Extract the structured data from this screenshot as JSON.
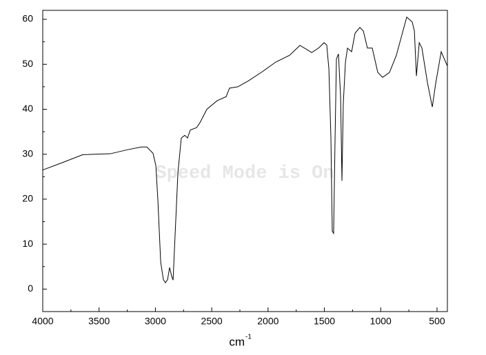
{
  "chart_data": {
    "type": "line",
    "xlabel": "cm",
    "xlabel_superscript": "-1",
    "watermark": "Speed Mode is On",
    "color": "#000000",
    "x": [
      4000,
      3829,
      3645,
      3400,
      3247,
      3125,
      3076,
      3021,
      2996,
      2978,
      2953,
      2929,
      2911,
      2892,
      2874,
      2856,
      2843,
      2825,
      2800,
      2770,
      2739,
      2715,
      2690,
      2635,
      2605,
      2543,
      2452,
      2372,
      2342,
      2268,
      2176,
      2054,
      1931,
      1809,
      1717,
      1650,
      1613,
      1552,
      1503,
      1479,
      1460,
      1442,
      1430,
      1418,
      1405,
      1393,
      1375,
      1356,
      1344,
      1332,
      1313,
      1295,
      1258,
      1228,
      1185,
      1154,
      1118,
      1075,
      1026,
      983,
      922,
      861,
      769,
      720,
      701,
      683,
      658,
      634,
      585,
      542,
      511,
      463,
      410
    ],
    "values": [
      26.5,
      28.1,
      29.9,
      30.1,
      31.0,
      31.6,
      31.6,
      30.2,
      27.5,
      19.8,
      6.0,
      2.1,
      1.4,
      2.1,
      4.8,
      2.9,
      2.0,
      12.1,
      25.9,
      33.6,
      34.2,
      33.6,
      35.4,
      35.9,
      37.0,
      40.0,
      41.9,
      42.8,
      44.7,
      45.0,
      46.3,
      48.3,
      50.5,
      52.0,
      54.2,
      53.2,
      52.6,
      53.6,
      54.8,
      54.3,
      49.0,
      33.6,
      12.9,
      12.4,
      33.6,
      51.2,
      52.3,
      42.8,
      24.1,
      41.3,
      50.5,
      53.6,
      52.8,
      56.9,
      58.2,
      57.4,
      53.6,
      53.6,
      48.2,
      47.1,
      48.2,
      52.0,
      60.5,
      59.4,
      57.4,
      47.4,
      54.8,
      53.6,
      45.9,
      40.5,
      45.9,
      52.8,
      49.7
    ],
    "xlim": [
      4000,
      408
    ],
    "ylim": [
      -5,
      62
    ],
    "xticks": [
      4000,
      3500,
      3000,
      2500,
      2000,
      1500,
      1000,
      500
    ],
    "yticks": [
      0,
      10,
      20,
      30,
      40,
      50,
      60
    ],
    "xticks_minor": [
      3750,
      3250,
      2750,
      2250,
      1750,
      1250,
      750
    ],
    "yticks_minor": [
      5,
      15,
      25,
      35,
      45,
      55
    ]
  }
}
